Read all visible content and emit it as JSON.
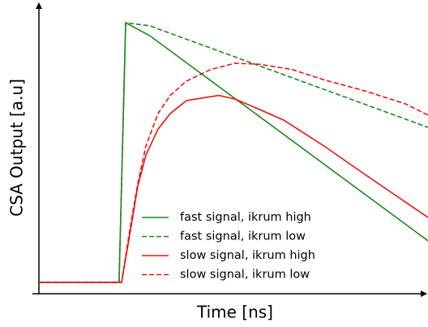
{
  "chart_data": {
    "type": "line",
    "x_label": "Time [ns]",
    "y_label": "CSA Output [a.u]",
    "xlim": [
      0,
      100
    ],
    "ylim": [
      0,
      108
    ],
    "legend": "lower center",
    "series": [
      {
        "name": "fast signal, ikrum high",
        "color": "#1a8a1a",
        "dash": false,
        "x": [
          0,
          20.6,
          22.3,
          28.5,
          100
        ],
        "values": [
          0,
          0,
          100,
          95,
          16
        ]
      },
      {
        "name": "fast signal, ikrum low",
        "color": "#1a8a1a",
        "dash": true,
        "x": [
          0,
          20.6,
          22.3,
          28.5,
          100
        ],
        "values": [
          0,
          0,
          100,
          98.8,
          59.7
        ]
      },
      {
        "name": "slow signal, ikrum high",
        "color": "#ee1111",
        "dash": false,
        "x": [
          0,
          21.25,
          23.3,
          25.4,
          27.5,
          30.6,
          33.75,
          37.9,
          42,
          46.25,
          50.4,
          56.7,
          62.9,
          73.3,
          83.75,
          100
        ],
        "values": [
          0,
          0,
          18,
          37,
          49,
          59,
          65,
          70,
          71,
          72,
          70.6,
          66.6,
          62.5,
          52.5,
          41.6,
          25
        ]
      },
      {
        "name": "slow signal, ikrum low",
        "color": "#ee1111",
        "dash": true,
        "x": [
          0,
          21.25,
          23.3,
          25.4,
          27.5,
          30.6,
          33.75,
          37.9,
          44.2,
          50.4,
          56.7,
          65,
          73.3,
          83.75,
          94.2,
          100
        ],
        "values": [
          0,
          0,
          19.7,
          38,
          52.5,
          65,
          72,
          77.5,
          82,
          84.4,
          84,
          82,
          78,
          73.75,
          68.75,
          64.4
        ]
      }
    ]
  }
}
